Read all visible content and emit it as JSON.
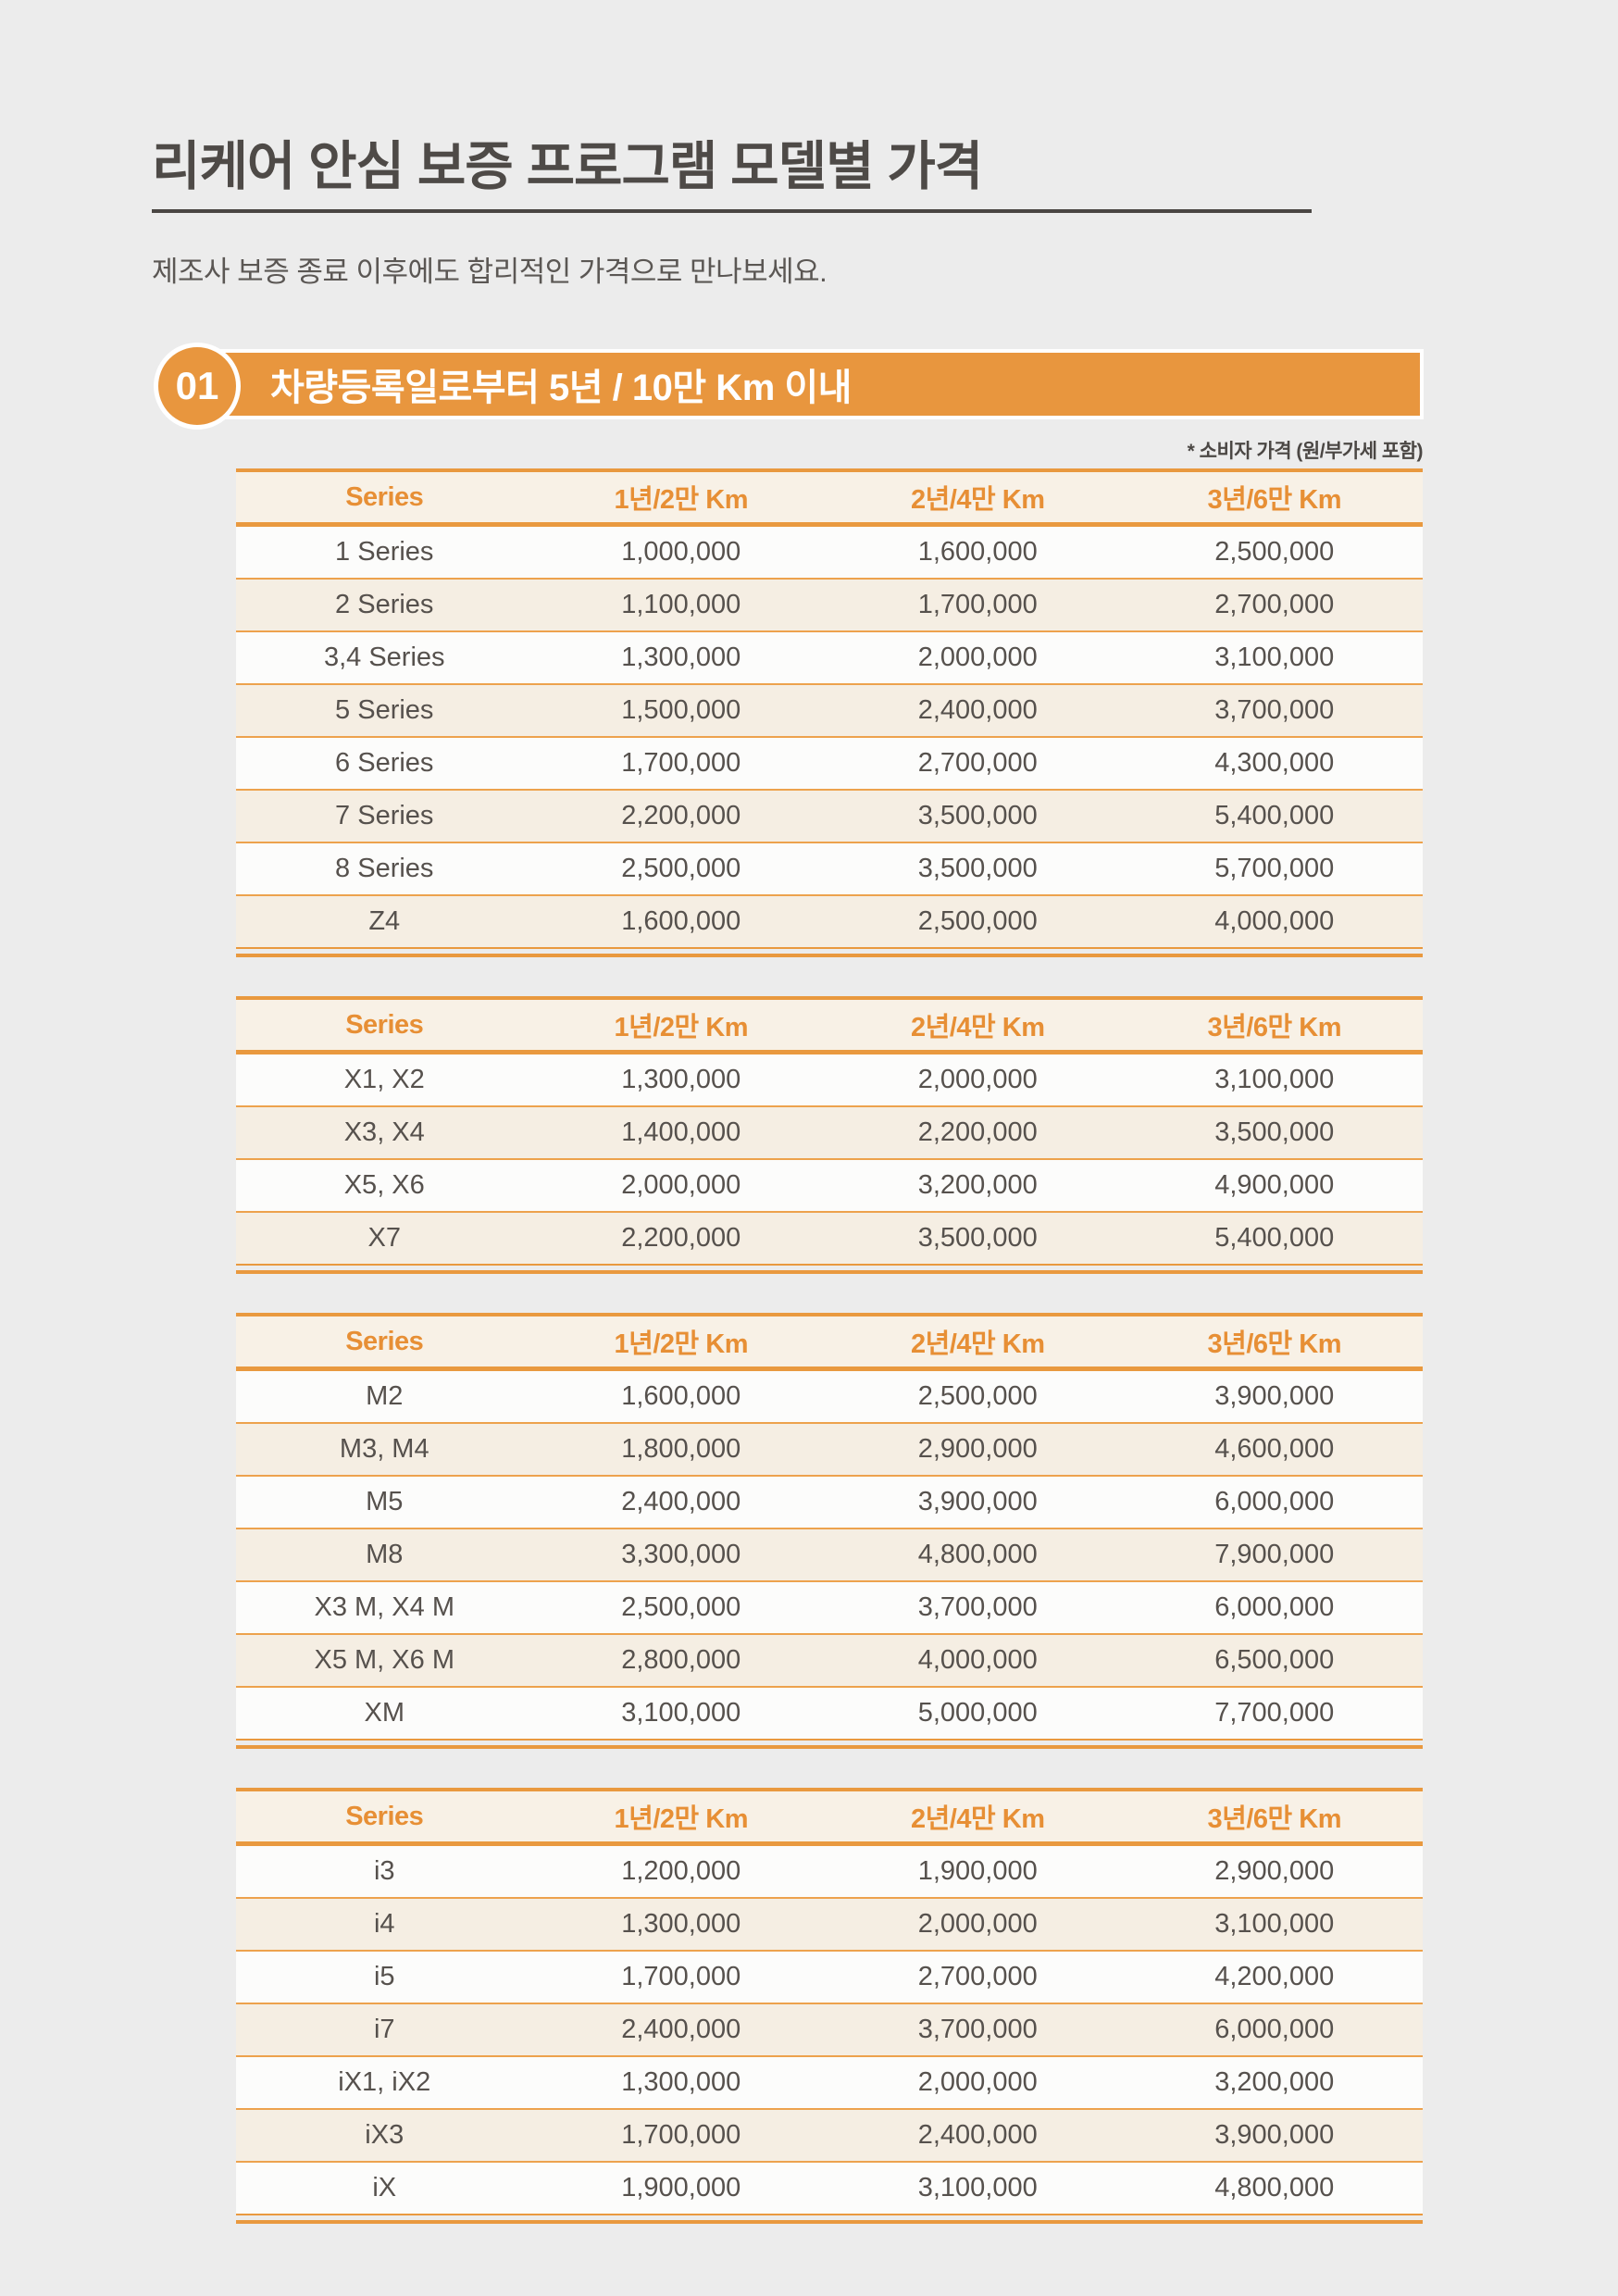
{
  "header": {
    "title": "리케어 안심 보증 프로그램 모델별 가격",
    "subtitle": "제조사 보증 종료 이후에도 합리적인 가격으로 만나보세요."
  },
  "section": {
    "number": "01",
    "label": "차량등록일로부터 5년 / 10만 Km 이내",
    "price_note": "* 소비자 가격 (원/부가세 포함)"
  },
  "colors": {
    "accent_orange": "#E8963E",
    "header_text_orange": "#E78F35",
    "row_separator_orange": "#EDA24D",
    "header_bg_cream": "#F8F1E6",
    "row_alt_bg_cream": "#F5EEE3",
    "page_bg_gray": "#ECECEC",
    "text_dark": "#4E4A47"
  },
  "table_headers": [
    "Series",
    "1년/2만 Km",
    "2년/4만 Km",
    "3년/6만 Km"
  ],
  "tables": [
    {
      "rows": [
        {
          "series": "1 Series",
          "prices": [
            "1,000,000",
            "1,600,000",
            "2,500,000"
          ]
        },
        {
          "series": "2 Series",
          "prices": [
            "1,100,000",
            "1,700,000",
            "2,700,000"
          ]
        },
        {
          "series": "3,4 Series",
          "prices": [
            "1,300,000",
            "2,000,000",
            "3,100,000"
          ]
        },
        {
          "series": "5 Series",
          "prices": [
            "1,500,000",
            "2,400,000",
            "3,700,000"
          ]
        },
        {
          "series": "6 Series",
          "prices": [
            "1,700,000",
            "2,700,000",
            "4,300,000"
          ]
        },
        {
          "series": "7 Series",
          "prices": [
            "2,200,000",
            "3,500,000",
            "5,400,000"
          ]
        },
        {
          "series": "8 Series",
          "prices": [
            "2,500,000",
            "3,500,000",
            "5,700,000"
          ]
        },
        {
          "series": "Z4",
          "prices": [
            "1,600,000",
            "2,500,000",
            "4,000,000"
          ]
        }
      ]
    },
    {
      "rows": [
        {
          "series": "X1, X2",
          "prices": [
            "1,300,000",
            "2,000,000",
            "3,100,000"
          ]
        },
        {
          "series": "X3, X4",
          "prices": [
            "1,400,000",
            "2,200,000",
            "3,500,000"
          ]
        },
        {
          "series": "X5, X6",
          "prices": [
            "2,000,000",
            "3,200,000",
            "4,900,000"
          ]
        },
        {
          "series": "X7",
          "prices": [
            "2,200,000",
            "3,500,000",
            "5,400,000"
          ]
        }
      ]
    },
    {
      "rows": [
        {
          "series": "M2",
          "prices": [
            "1,600,000",
            "2,500,000",
            "3,900,000"
          ]
        },
        {
          "series": "M3, M4",
          "prices": [
            "1,800,000",
            "2,900,000",
            "4,600,000"
          ]
        },
        {
          "series": "M5",
          "prices": [
            "2,400,000",
            "3,900,000",
            "6,000,000"
          ]
        },
        {
          "series": "M8",
          "prices": [
            "3,300,000",
            "4,800,000",
            "7,900,000"
          ]
        },
        {
          "series": "X3 M, X4 M",
          "prices": [
            "2,500,000",
            "3,700,000",
            "6,000,000"
          ]
        },
        {
          "series": "X5 M, X6 M",
          "prices": [
            "2,800,000",
            "4,000,000",
            "6,500,000"
          ]
        },
        {
          "series": "XM",
          "prices": [
            "3,100,000",
            "5,000,000",
            "7,700,000"
          ]
        }
      ]
    },
    {
      "rows": [
        {
          "series": "i3",
          "prices": [
            "1,200,000",
            "1,900,000",
            "2,900,000"
          ]
        },
        {
          "series": "i4",
          "prices": [
            "1,300,000",
            "2,000,000",
            "3,100,000"
          ]
        },
        {
          "series": "i5",
          "prices": [
            "1,700,000",
            "2,700,000",
            "4,200,000"
          ]
        },
        {
          "series": "i7",
          "prices": [
            "2,400,000",
            "3,700,000",
            "6,000,000"
          ]
        },
        {
          "series": "iX1, iX2",
          "prices": [
            "1,300,000",
            "2,000,000",
            "3,200,000"
          ]
        },
        {
          "series": "iX3",
          "prices": [
            "1,700,000",
            "2,400,000",
            "3,900,000"
          ]
        },
        {
          "series": "iX",
          "prices": [
            "1,900,000",
            "3,100,000",
            "4,800,000"
          ]
        }
      ]
    }
  ]
}
